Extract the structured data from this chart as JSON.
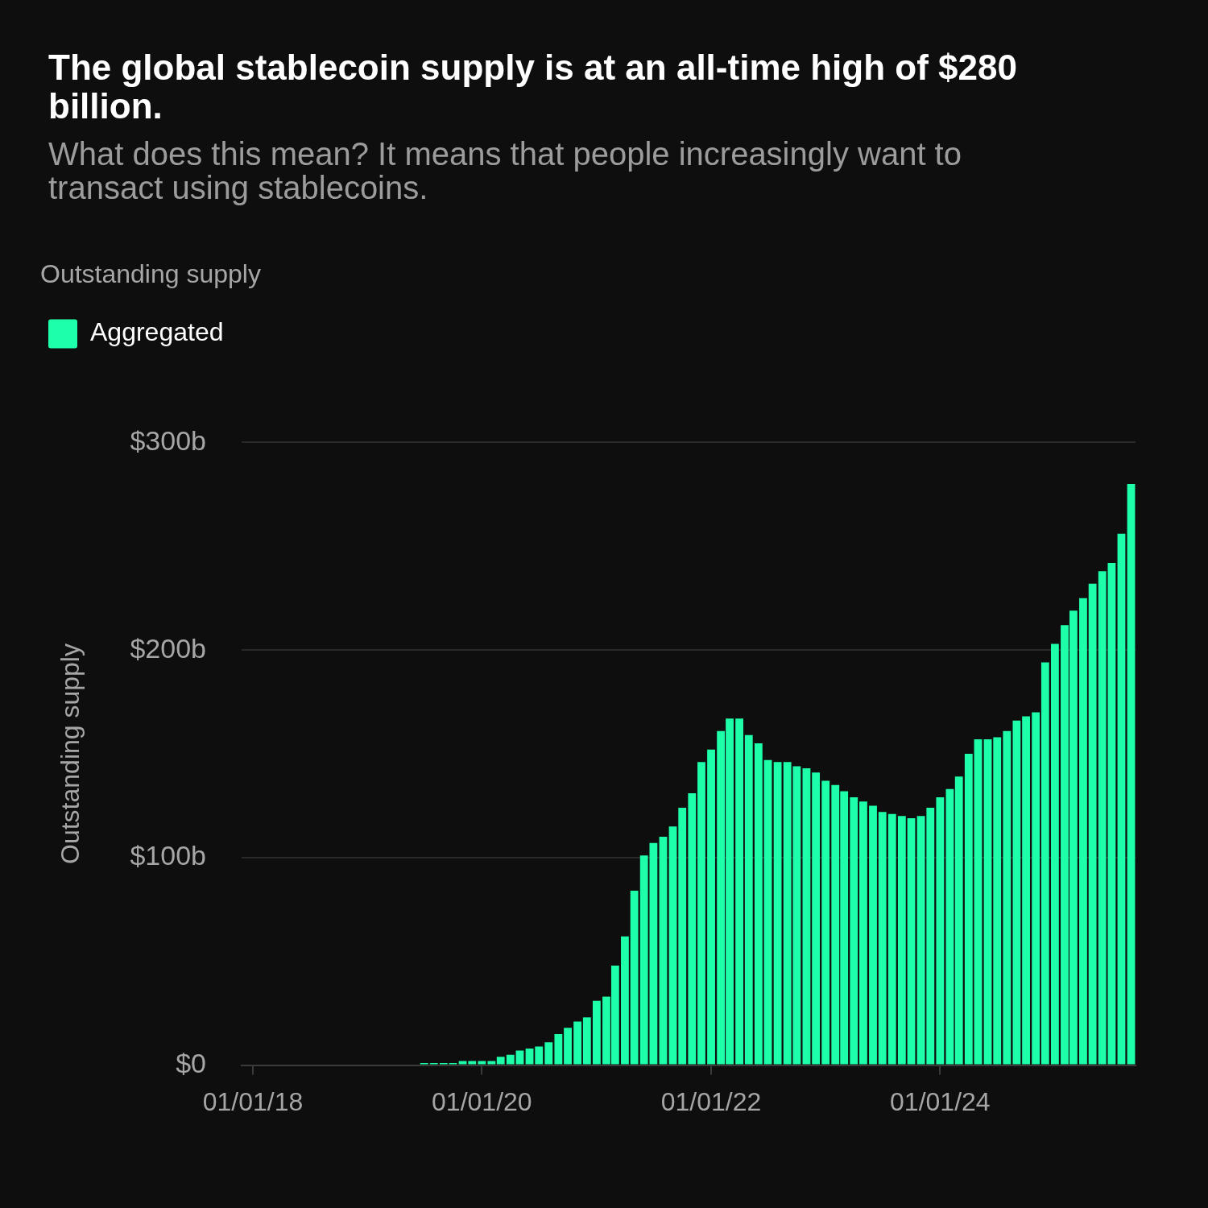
{
  "chart_data": {
    "type": "bar",
    "title": "The global stablecoin supply is at an all-time high of $280 billion.",
    "subtitle": "What does this mean? It means that people increasingly want to transact using stablecoins.",
    "ylabel": "Outstanding supply",
    "legend_title": "Outstanding supply",
    "legend": "top left",
    "grid": "y",
    "x": [
      "2019-07",
      "2019-08",
      "2019-09",
      "2019-10",
      "2019-11",
      "2019-12",
      "2020-01",
      "2020-02",
      "2020-03",
      "2020-04",
      "2020-05",
      "2020-06",
      "2020-07",
      "2020-08",
      "2020-09",
      "2020-10",
      "2020-11",
      "2020-12",
      "2021-01",
      "2021-02",
      "2021-03",
      "2021-04",
      "2021-05",
      "2021-06",
      "2021-07",
      "2021-08",
      "2021-09",
      "2021-10",
      "2021-11",
      "2021-12",
      "2022-01",
      "2022-02",
      "2022-03",
      "2022-04",
      "2022-05",
      "2022-06",
      "2022-07",
      "2022-08",
      "2022-09",
      "2022-10",
      "2022-11",
      "2022-12",
      "2023-01",
      "2023-02",
      "2023-03",
      "2023-04",
      "2023-05",
      "2023-06",
      "2023-07",
      "2023-08",
      "2023-09",
      "2023-10",
      "2023-11",
      "2023-12",
      "2024-01",
      "2024-02",
      "2024-03",
      "2024-04",
      "2024-05",
      "2024-06",
      "2024-07",
      "2024-08",
      "2024-09",
      "2024-10",
      "2024-11",
      "2024-12",
      "2025-01",
      "2025-02",
      "2025-03",
      "2025-04",
      "2025-05",
      "2025-06",
      "2025-07",
      "2025-08",
      "2025-09"
    ],
    "series": [
      {
        "name": "Aggregated",
        "color": "#1effaa",
        "values": [
          1,
          1,
          1,
          1,
          2,
          2,
          2,
          2,
          4,
          5,
          7,
          8,
          9,
          11,
          15,
          18,
          21,
          23,
          31,
          33,
          48,
          62,
          84,
          101,
          107,
          110,
          115,
          124,
          131,
          146,
          152,
          161,
          167,
          167,
          159,
          155,
          147,
          146,
          146,
          144,
          143,
          141,
          137,
          135,
          132,
          129,
          127,
          125,
          122,
          121,
          120,
          119,
          120,
          124,
          129,
          133,
          139,
          150,
          157,
          157,
          158,
          161,
          166,
          168,
          170,
          194,
          203,
          212,
          219,
          225,
          232,
          238,
          242,
          256,
          280
        ]
      }
    ],
    "xlim": [
      "2017-11-26",
      "2025-09-15"
    ],
    "xticks": [
      {
        "value": "2018-01-01",
        "label": "01/01/18"
      },
      {
        "value": "2020-01-01",
        "label": "01/01/20"
      },
      {
        "value": "2022-01-01",
        "label": "01/01/22"
      },
      {
        "value": "2024-01-01",
        "label": "01/01/24"
      }
    ],
    "ylim": [
      0,
      300
    ],
    "yticks": [
      {
        "value": 0,
        "label": "$0"
      },
      {
        "value": 100,
        "label": "$100b"
      },
      {
        "value": 200,
        "label": "$200b"
      },
      {
        "value": 300,
        "label": "$300b"
      }
    ]
  }
}
